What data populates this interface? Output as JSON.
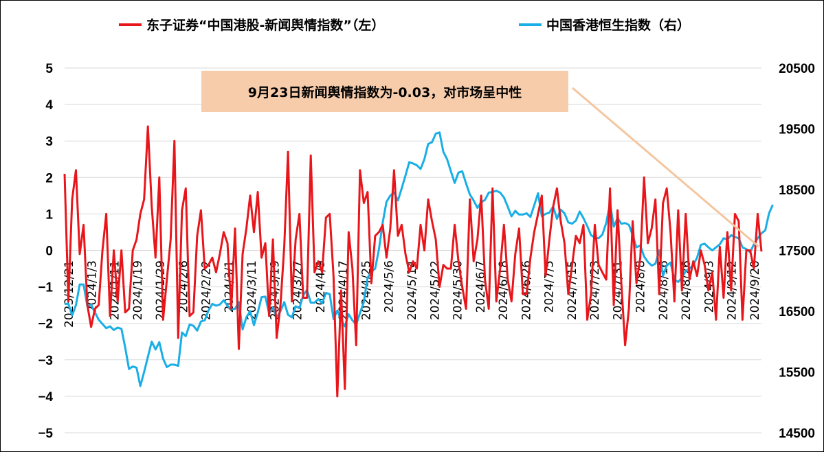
{
  "colors": {
    "left_series": "#e8161b",
    "right_series": "#19aee6",
    "callout_bg": "#f7ccab",
    "arrow": "#f4c6a0"
  },
  "legend": {
    "left_label": "东子证券“中国港股-新闻舆情指数”（左）",
    "right_label": "中国香港恒生指数（右）"
  },
  "callout": {
    "text": "9月23日新闻舆情指数为-0.03，对市场呈中性"
  },
  "chart_data": {
    "type": "line",
    "title": "",
    "y_left": {
      "range": [
        -5,
        5
      ],
      "ticks": [
        "5",
        "4",
        "3",
        "2",
        "1",
        "0",
        "−1",
        "−2",
        "−3",
        "−4",
        "−5"
      ]
    },
    "y_right": {
      "range": [
        14500,
        20500
      ],
      "ticks": [
        "20500",
        "19500",
        "18500",
        "17500",
        "16500",
        "15500",
        "14500"
      ]
    },
    "x_tick_labels": [
      "2023/12/21",
      "2024/1/3",
      "2024/1/11",
      "2024/1/19",
      "2024/1/29",
      "2024/2/6",
      "2024/2/22",
      "2024/3/1",
      "2024/3/11",
      "2024/3/19",
      "2024/3/27",
      "2024/4/9",
      "2024/4/17",
      "2024/4/25",
      "2024/5/6",
      "2024/5/14",
      "2024/5/22",
      "2024/5/30",
      "2024/6/7",
      "2024/6/18",
      "2024/6/26",
      "2024/7/5",
      "2024/7/15",
      "2024/7/23",
      "2024/7/31",
      "2024/8/8",
      "2024/8/16",
      "2024/8/26",
      "2024/9/3",
      "2024/9/12",
      "2024/9/20"
    ],
    "series": [
      {
        "name": "东子证券“中国港股-新闻舆情指数”（左）",
        "axis": "left",
        "values": [
          2.1,
          -1.4,
          1.4,
          2.2,
          -0.1,
          0.7,
          -1.5,
          -2.1,
          -1.6,
          -1.5,
          0,
          1.0,
          -1.8,
          0,
          -1.4,
          0,
          -1.7,
          -1.6,
          0,
          0.3,
          1.0,
          1.4,
          3.4,
          1.2,
          -0.2,
          2.0,
          -1.9,
          -0.8,
          0.3,
          3.0,
          -2.4,
          1.1,
          1.7,
          -1.8,
          -1.7,
          0.4,
          1.1,
          -0.5,
          -0.4,
          -0.2,
          -0.6,
          -0.1,
          0.5,
          0.2,
          -1.6,
          0.6,
          -2.7,
          -0.1,
          0.6,
          1.5,
          0.5,
          1.6,
          -0.2,
          0.2,
          -1.8,
          0.3,
          -2.4,
          -1.5,
          0.1,
          2.7,
          -1.4,
          0.3,
          1.0,
          -1.3,
          -1.3,
          2.6,
          -0.6,
          -0.3,
          -0.6,
          0.9,
          1.0,
          -0.7,
          -4.0,
          -1.1,
          -3.8,
          0.5,
          -0.5,
          -2.6,
          2.2,
          1.3,
          1.6,
          -0.9,
          0.4,
          0.5,
          0.7,
          -0.2,
          0.6,
          2.2,
          0.4,
          0.7,
          -0.1,
          -0.6,
          -0.3,
          -0.5,
          0.7,
          0,
          1.4,
          0.8,
          0.3,
          -1.0,
          -0.4,
          -0.5,
          -0.5,
          0.7,
          -0.3,
          -1.0,
          -1.6,
          1.4,
          -0.3,
          0.3,
          1.5,
          -0.8,
          -1.6,
          1.7,
          -1.4,
          -0.5,
          0.7,
          -0.8,
          -1.4,
          -0.1,
          0.6,
          -1.2,
          -1.2,
          -0.2,
          0.5,
          1.0,
          1.5,
          -0.7,
          0.3,
          1.2,
          1.7,
          0.8,
          0.2,
          -1.2,
          -0.4,
          0.4,
          0.2,
          0.7,
          -1.9,
          -1.2,
          0.7,
          -0.4,
          -0.6,
          -0.8,
          1.7,
          -1.5,
          1.1,
          -0.9,
          -2.6,
          -1.6,
          0.8,
          -0.9,
          -0.2,
          2.0,
          0.2,
          0.6,
          1.4,
          -1.2,
          1.3,
          1.7,
          0.5,
          -1.4,
          1.1,
          -1.1,
          1.0,
          -0.8,
          -0.3,
          -0.7,
          0,
          -0.4,
          -1.1,
          -0.6,
          -1.9,
          0.1,
          -1.3,
          0.5,
          -1.1,
          1.0,
          0.8,
          -1.9,
          0,
          0,
          -0.5,
          1.0,
          -0.03
        ]
      },
      {
        "name": "中国香港恒生指数（右）",
        "axis": "right",
        "values": [
          16620,
          16620,
          16430,
          16600,
          16940,
          16940,
          16580,
          16610,
          16480,
          16360,
          16290,
          16220,
          16250,
          16190,
          16230,
          16210,
          15900,
          15550,
          15590,
          15570,
          15270,
          15500,
          15750,
          16000,
          15870,
          15990,
          15720,
          15580,
          15620,
          15620,
          15600,
          16150,
          16090,
          16280,
          16260,
          16180,
          16330,
          16350,
          16510,
          16620,
          16590,
          16610,
          16680,
          16590,
          16530,
          16540,
          16650,
          16200,
          16400,
          16500,
          16270,
          16480,
          16730,
          16740,
          16460,
          16560,
          16400,
          16500,
          16650,
          16440,
          16400,
          16580,
          16550,
          16760,
          16850,
          16640,
          16640,
          16700,
          16630,
          16800,
          16780,
          16370,
          16510,
          16360,
          16250,
          16450,
          16350,
          16280,
          16470,
          16650,
          17050,
          17150,
          17200,
          17520,
          17960,
          18300,
          18400,
          18450,
          18320,
          18520,
          18730,
          18950,
          18930,
          18900,
          18840,
          19000,
          19250,
          19280,
          19420,
          19440,
          19120,
          19000,
          18800,
          18610,
          18780,
          18800,
          18600,
          18420,
          18320,
          18200,
          18290,
          18330,
          18450,
          18460,
          18480,
          18450,
          18370,
          18220,
          18060,
          18150,
          18090,
          18090,
          18110,
          18050,
          18240,
          18440,
          18060,
          18100,
          18120,
          18220,
          18020,
          18170,
          18110,
          17960,
          17940,
          17990,
          18140,
          18030,
          17900,
          17750,
          17710,
          17700,
          17760,
          17950,
          18280,
          17890,
          18030,
          17940,
          17950,
          17920,
          17750,
          17550,
          17580,
          17400,
          17310,
          17250,
          17280,
          17500,
          17080,
          17250,
          17300,
          17020,
          16980,
          17050,
          17160,
          17200,
          17260,
          17380,
          17590,
          17610,
          17550,
          17500,
          17550,
          17600,
          17700,
          17680,
          17750,
          17720,
          17700,
          17550,
          17520,
          17470,
          17600,
          17700,
          17780,
          17830,
          18110,
          18250
        ]
      }
    ]
  }
}
